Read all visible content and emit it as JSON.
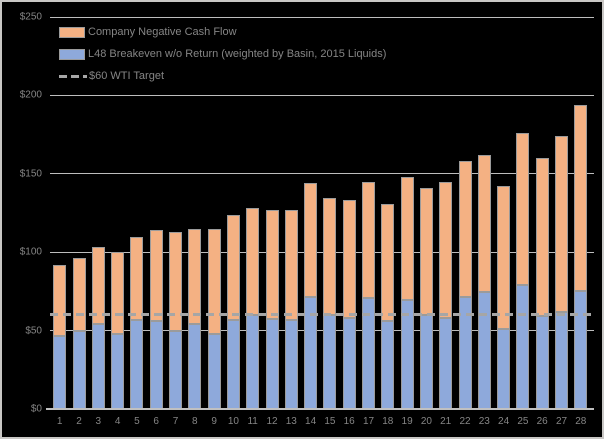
{
  "chart": {
    "background": "#000000",
    "frame_color": "#C9C7C5",
    "text_color": "#858585",
    "gridline_color": "#BDBDBD",
    "axis_color": "#C0C0C0",
    "bar_border_color": "#9B9B9B",
    "target_line_color": "#A6A6A6",
    "y_ticks": [
      {
        "value": 0,
        "label": "$0"
      },
      {
        "value": 50,
        "label": "$50"
      },
      {
        "value": 100,
        "label": "$100"
      },
      {
        "value": 150,
        "label": "$150"
      },
      {
        "value": 200,
        "label": "$200"
      },
      {
        "value": 250,
        "label": "$250"
      }
    ],
    "legend": [
      {
        "type": "box",
        "color": "#F4B183",
        "label": "Company Negative Cash Flow"
      },
      {
        "type": "box",
        "color": "#8EA9DB",
        "label": "L48 Breakeven w/o Return (weighted by Basin, 2015 Liquids)"
      },
      {
        "type": "dash",
        "color": "#A6A6A6",
        "label": "$60 WTI Target"
      }
    ]
  },
  "chart_data": {
    "type": "bar",
    "stacked": true,
    "title": "",
    "xlabel": "",
    "ylabel": "",
    "ylim": [
      0,
      250
    ],
    "y_tick_step": 50,
    "grid": true,
    "legend_position": "top-left-inside",
    "categories": [
      "1",
      "2",
      "3",
      "4",
      "5",
      "6",
      "7",
      "8",
      "9",
      "10",
      "11",
      "12",
      "13",
      "14",
      "15",
      "16",
      "17",
      "18",
      "19",
      "20",
      "21",
      "22",
      "23",
      "24",
      "25",
      "26",
      "27",
      "28"
    ],
    "series": [
      {
        "name": "L48 Breakeven w/o Return (weighted by Basin, 2015 Liquids)",
        "color": "#8EA9DB",
        "values": [
          46.5,
          49.5,
          54,
          48,
          57,
          56,
          49.5,
          54,
          48,
          56.5,
          60,
          57.5,
          56.5,
          71.5,
          60,
          58,
          71,
          56,
          69.5,
          60,
          58,
          71.5,
          74.5,
          51,
          79,
          59,
          62,
          75
        ]
      },
      {
        "name": "Company Negative Cash Flow",
        "color": "#F4B183",
        "values": [
          45.5,
          47,
          49,
          52,
          53,
          58,
          63.5,
          61,
          67,
          67,
          68,
          69.5,
          70.5,
          72.5,
          74.5,
          75.5,
          74,
          75,
          78.5,
          81,
          87,
          86.5,
          87.5,
          91,
          97,
          101,
          112,
          119
        ]
      }
    ],
    "stacked_totals": [
      92,
      96.5,
      103,
      100,
      110,
      114,
      113,
      115,
      115,
      123.5,
      128,
      127,
      127,
      144,
      134.5,
      133.5,
      145,
      131,
      148,
      141,
      145,
      158,
      162,
      142,
      176,
      160,
      174,
      194
    ],
    "target_line": {
      "label": "$60 WTI Target",
      "value": 60
    }
  }
}
